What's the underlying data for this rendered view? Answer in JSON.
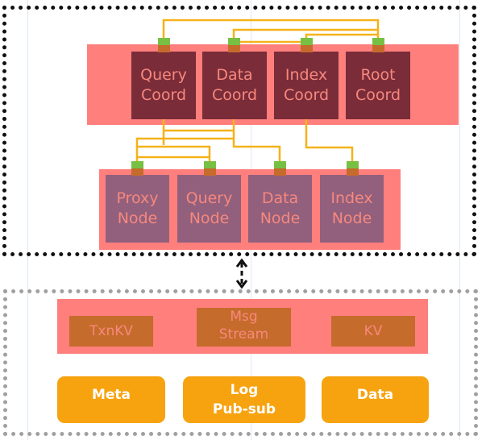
{
  "coordinators": [
    {
      "label": "Query\nCoord"
    },
    {
      "label": "Data\nCoord"
    },
    {
      "label": "Index\nCoord"
    },
    {
      "label": "Root\nCoord"
    }
  ],
  "worker_nodes": [
    {
      "label": "Proxy\nNode"
    },
    {
      "label": "Query\nNode"
    },
    {
      "label": "Data\nNode"
    },
    {
      "label": "Index\nNode"
    }
  ],
  "storage_services": [
    {
      "label": "TxnKV"
    },
    {
      "label": "Msg\nStream"
    },
    {
      "label": "KV"
    }
  ],
  "storage_layers": [
    {
      "label": "Meta"
    },
    {
      "label": "Log\nPub-sub"
    },
    {
      "label": "Data"
    }
  ],
  "colors": {
    "band": "#fe7f7b",
    "coordinator": "#7a2c38",
    "node": "#925f7c",
    "storage_service": "#c56b2b",
    "storage_layer": "#f7a20f",
    "connector": "#77c043",
    "link": "#f6b21b"
  }
}
